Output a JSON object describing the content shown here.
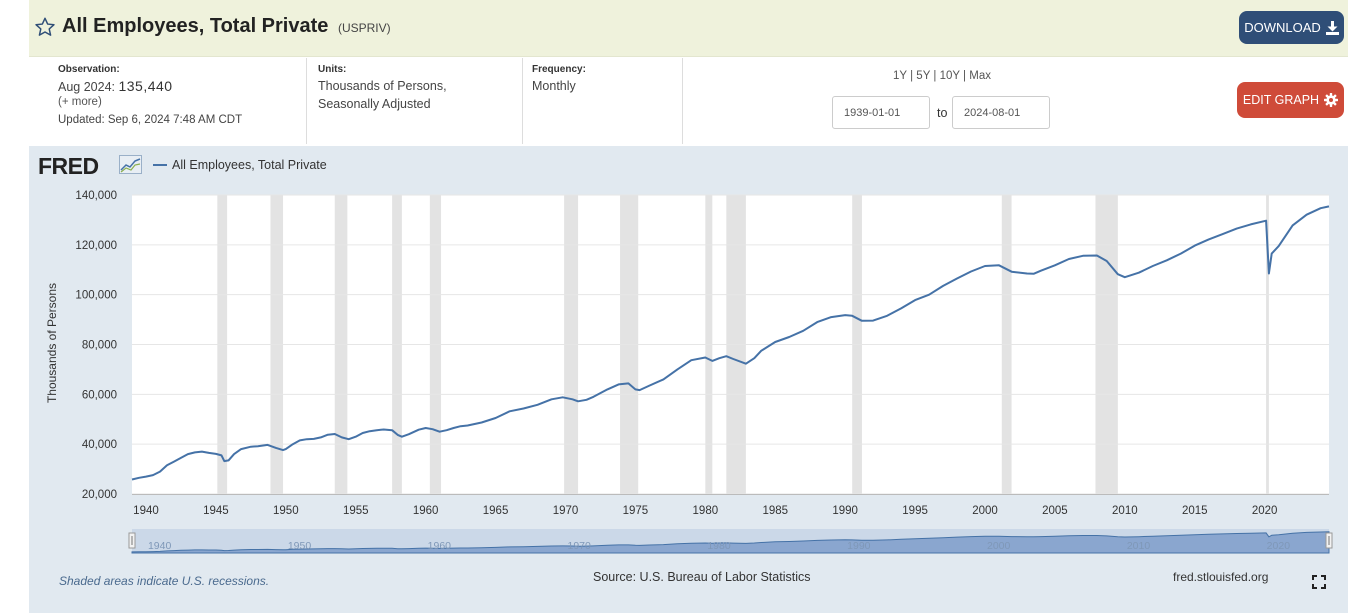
{
  "header": {
    "title": "All Employees, Total Private",
    "code": "(USPRIV)",
    "download_label": "DOWNLOAD"
  },
  "meta": {
    "observation_label": "Observation:",
    "observation_date": "Aug 2024:",
    "observation_value": "135,440",
    "more_label": "(+ more)",
    "updated": "Updated: Sep 6, 2024 7:48 AM CDT",
    "units_label": "Units:",
    "units_line1": "Thousands of Persons,",
    "units_line2": "Seasonally Adjusted",
    "frequency_label": "Frequency:",
    "frequency_value": "Monthly"
  },
  "controls": {
    "range_1y": "1Y",
    "range_5y": "5Y",
    "range_10y": "10Y",
    "range_max": "Max",
    "separator": "|",
    "start_date": "1939-01-01",
    "to_label": "to",
    "end_date": "2024-08-01",
    "edit_label": "EDIT GRAPH"
  },
  "branding": {
    "logo_text": "FRED",
    "note": "Shaded areas indicate U.S. recessions.",
    "source": "Source: U.S. Bureau of Labor Statistics",
    "site": "fred.stlouisfed.org"
  },
  "colors": {
    "line": "#4572a7",
    "recession": "#e3e3e3",
    "navigator_fill": "#8aa6cf",
    "download_bg": "#2f4e77",
    "edit_bg": "#cf4b39"
  },
  "chart_data": {
    "type": "line",
    "title": "All Employees, Total Private",
    "legend": "All Employees, Total Private",
    "ylabel": "Thousands of Persons",
    "xlabel": "",
    "xlim": [
      1939.0,
      2024.6
    ],
    "ylim": [
      20000,
      140000
    ],
    "yticks": [
      20000,
      40000,
      60000,
      80000,
      100000,
      120000,
      140000
    ],
    "ytick_labels": [
      "20,000",
      "40,000",
      "60,000",
      "80,000",
      "100,000",
      "120,000",
      "140,000"
    ],
    "xticks": [
      1940,
      1945,
      1950,
      1955,
      1960,
      1965,
      1970,
      1975,
      1980,
      1985,
      1990,
      1995,
      2000,
      2005,
      2010,
      2015,
      2020
    ],
    "navigator_ticks": [
      "1940",
      "1950",
      "1960",
      "1970",
      "1980",
      "1990",
      "2000",
      "2010",
      "2020"
    ],
    "recessions": [
      [
        1945.1,
        1945.8
      ],
      [
        1948.9,
        1949.8
      ],
      [
        1953.5,
        1954.4
      ],
      [
        1957.6,
        1958.3
      ],
      [
        1960.3,
        1961.1
      ],
      [
        1969.9,
        1970.9
      ],
      [
        1973.9,
        1975.2
      ],
      [
        1980.0,
        1980.5
      ],
      [
        1981.5,
        1982.9
      ],
      [
        1990.5,
        1991.2
      ],
      [
        2001.2,
        2001.9
      ],
      [
        2007.9,
        2009.5
      ],
      [
        2020.1,
        2020.3
      ]
    ],
    "series": [
      {
        "name": "All Employees, Total Private",
        "points": [
          [
            1939.0,
            25800
          ],
          [
            1939.5,
            26500
          ],
          [
            1940.0,
            27000
          ],
          [
            1940.5,
            27600
          ],
          [
            1941.0,
            29000
          ],
          [
            1941.5,
            31500
          ],
          [
            1942.0,
            33000
          ],
          [
            1942.5,
            34500
          ],
          [
            1943.0,
            36000
          ],
          [
            1943.5,
            36700
          ],
          [
            1944.0,
            37000
          ],
          [
            1944.5,
            36500
          ],
          [
            1945.0,
            36100
          ],
          [
            1945.4,
            35500
          ],
          [
            1945.6,
            33200
          ],
          [
            1945.9,
            33500
          ],
          [
            1946.3,
            36000
          ],
          [
            1946.8,
            38000
          ],
          [
            1947.5,
            39000
          ],
          [
            1948.0,
            39200
          ],
          [
            1948.7,
            39700
          ],
          [
            1949.3,
            38500
          ],
          [
            1949.8,
            37600
          ],
          [
            1950.0,
            38000
          ],
          [
            1950.5,
            40000
          ],
          [
            1951.0,
            41500
          ],
          [
            1951.5,
            42000
          ],
          [
            1952.0,
            42100
          ],
          [
            1952.5,
            42700
          ],
          [
            1953.0,
            43800
          ],
          [
            1953.5,
            44100
          ],
          [
            1954.0,
            42700
          ],
          [
            1954.5,
            42000
          ],
          [
            1955.0,
            43000
          ],
          [
            1955.5,
            44500
          ],
          [
            1956.0,
            45200
          ],
          [
            1956.5,
            45600
          ],
          [
            1957.0,
            45900
          ],
          [
            1957.6,
            45600
          ],
          [
            1958.0,
            43700
          ],
          [
            1958.3,
            43000
          ],
          [
            1958.8,
            44000
          ],
          [
            1959.5,
            45800
          ],
          [
            1960.0,
            46500
          ],
          [
            1960.5,
            46000
          ],
          [
            1961.0,
            45000
          ],
          [
            1961.5,
            45600
          ],
          [
            1962.0,
            46500
          ],
          [
            1962.5,
            47200
          ],
          [
            1963.0,
            47500
          ],
          [
            1964.0,
            48700
          ],
          [
            1965.0,
            50500
          ],
          [
            1966.0,
            53200
          ],
          [
            1967.0,
            54300
          ],
          [
            1968.0,
            55800
          ],
          [
            1969.0,
            58000
          ],
          [
            1969.8,
            58800
          ],
          [
            1970.5,
            58000
          ],
          [
            1970.9,
            57200
          ],
          [
            1971.5,
            57800
          ],
          [
            1972.0,
            59000
          ],
          [
            1973.0,
            62000
          ],
          [
            1973.8,
            64000
          ],
          [
            1974.5,
            64400
          ],
          [
            1975.0,
            62000
          ],
          [
            1975.3,
            61700
          ],
          [
            1976.0,
            63500
          ],
          [
            1977.0,
            66000
          ],
          [
            1978.0,
            70000
          ],
          [
            1979.0,
            73700
          ],
          [
            1980.0,
            74800
          ],
          [
            1980.5,
            73400
          ],
          [
            1981.0,
            74500
          ],
          [
            1981.5,
            75300
          ],
          [
            1982.0,
            74200
          ],
          [
            1982.9,
            72300
          ],
          [
            1983.5,
            74500
          ],
          [
            1984.0,
            77500
          ],
          [
            1985.0,
            81000
          ],
          [
            1986.0,
            83000
          ],
          [
            1987.0,
            85500
          ],
          [
            1988.0,
            89000
          ],
          [
            1989.0,
            91000
          ],
          [
            1990.0,
            91800
          ],
          [
            1990.5,
            91500
          ],
          [
            1991.2,
            89500
          ],
          [
            1992.0,
            89600
          ],
          [
            1993.0,
            91500
          ],
          [
            1994.0,
            94500
          ],
          [
            1995.0,
            97800
          ],
          [
            1996.0,
            100000
          ],
          [
            1997.0,
            103500
          ],
          [
            1998.0,
            106500
          ],
          [
            1999.0,
            109300
          ],
          [
            2000.0,
            111500
          ],
          [
            2001.0,
            111800
          ],
          [
            2001.9,
            109200
          ],
          [
            2003.0,
            108500
          ],
          [
            2003.5,
            108400
          ],
          [
            2004.0,
            109600
          ],
          [
            2005.0,
            111800
          ],
          [
            2006.0,
            114300
          ],
          [
            2007.0,
            115600
          ],
          [
            2008.0,
            115700
          ],
          [
            2008.7,
            113500
          ],
          [
            2009.5,
            108200
          ],
          [
            2010.0,
            107000
          ],
          [
            2011.0,
            108800
          ],
          [
            2012.0,
            111500
          ],
          [
            2013.0,
            113800
          ],
          [
            2014.0,
            116500
          ],
          [
            2015.0,
            119700
          ],
          [
            2016.0,
            122200
          ],
          [
            2017.0,
            124300
          ],
          [
            2018.0,
            126500
          ],
          [
            2019.0,
            128200
          ],
          [
            2020.1,
            129700
          ],
          [
            2020.3,
            108500
          ],
          [
            2020.5,
            116500
          ],
          [
            2021.0,
            119500
          ],
          [
            2022.0,
            127800
          ],
          [
            2023.0,
            132100
          ],
          [
            2024.0,
            134700
          ],
          [
            2024.6,
            135440
          ]
        ]
      }
    ]
  }
}
